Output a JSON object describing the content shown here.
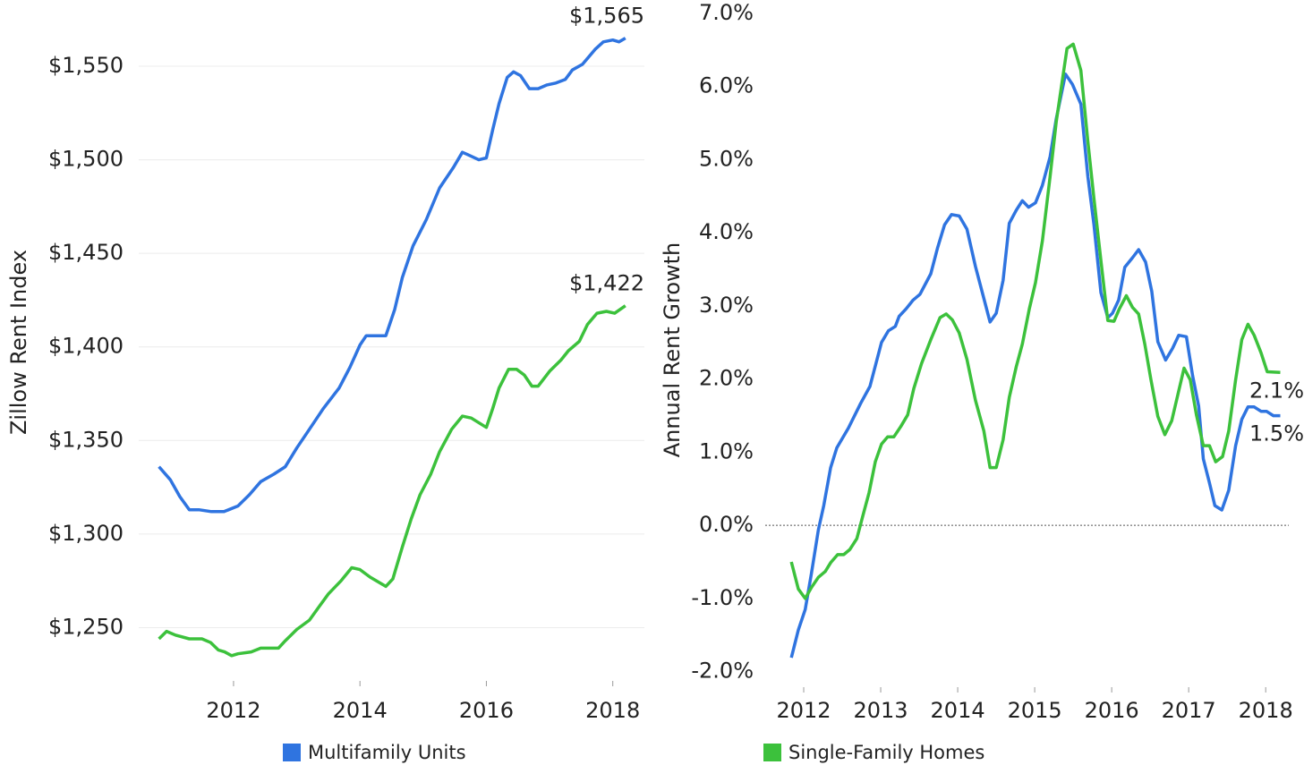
{
  "chart_data": [
    {
      "type": "line",
      "ylabel": "Zillow Rent Index",
      "grid": true,
      "legend": "bottom",
      "label_position": "above",
      "xlim": [
        2010.5,
        2018.5
      ],
      "xticks": [
        2012,
        2014,
        2016,
        2018
      ],
      "ylim": [
        1222,
        1583
      ],
      "yticks": [
        {
          "value": 1250,
          "label": "$1,250"
        },
        {
          "value": 1300,
          "label": "$1,300"
        },
        {
          "value": 1350,
          "label": "$1,350"
        },
        {
          "value": 1400,
          "label": "$1,400"
        },
        {
          "value": 1450,
          "label": "$1,450"
        },
        {
          "value": 1500,
          "label": "$1,500"
        },
        {
          "value": 1550,
          "label": "$1,550"
        }
      ],
      "series": [
        {
          "name": "Multifamily Units",
          "color": "#2f74e0",
          "x": [
            2010.82,
            2011.0,
            2011.15,
            2011.3,
            2011.45,
            2011.65,
            2011.85,
            2012.07,
            2012.25,
            2012.43,
            2012.64,
            2012.82,
            2013.0,
            2013.2,
            2013.42,
            2013.67,
            2013.84,
            2014.0,
            2014.1,
            2014.41,
            2014.55,
            2014.67,
            2014.84,
            2015.05,
            2015.26,
            2015.48,
            2015.62,
            2015.69,
            2015.88,
            2016.0,
            2016.1,
            2016.2,
            2016.33,
            2016.43,
            2016.54,
            2016.68,
            2016.82,
            2016.96,
            2017.1,
            2017.25,
            2017.36,
            2017.52,
            2017.72,
            2017.85,
            2018.0,
            2018.1,
            2018.2
          ],
          "values": [
            1336,
            1329,
            1320,
            1313,
            1313,
            1312,
            1312,
            1315,
            1321,
            1328,
            1332,
            1336,
            1346,
            1356,
            1367,
            1378,
            1389,
            1401,
            1406,
            1406,
            1420,
            1437,
            1454,
            1468,
            1485,
            1496,
            1504,
            1503,
            1500,
            1501,
            1516,
            1530,
            1544,
            1547,
            1545,
            1538,
            1538,
            1540,
            1541,
            1543,
            1548,
            1551,
            1559,
            1563,
            1564,
            1563,
            1565
          ],
          "value_labels": [
            null,
            null,
            null,
            null,
            null,
            null,
            null,
            null,
            null,
            null,
            null,
            null,
            null,
            null,
            null,
            null,
            null,
            null,
            null,
            null,
            null,
            null,
            null,
            null,
            null,
            null,
            null,
            null,
            null,
            null,
            null,
            null,
            null,
            null,
            null,
            null,
            null,
            null,
            null,
            null,
            null,
            null,
            null,
            null,
            null,
            null,
            "$1,565"
          ]
        },
        {
          "name": "Single-Family Homes",
          "color": "#3cc13c",
          "x": [
            2010.82,
            2010.94,
            2011.08,
            2011.3,
            2011.5,
            2011.64,
            2011.76,
            2011.86,
            2011.97,
            2012.07,
            2012.28,
            2012.43,
            2012.71,
            2012.82,
            2013.0,
            2013.2,
            2013.35,
            2013.5,
            2013.7,
            2013.87,
            2014.0,
            2014.16,
            2014.41,
            2014.52,
            2014.67,
            2014.81,
            2014.95,
            2015.12,
            2015.26,
            2015.45,
            2015.62,
            2015.76,
            2016.0,
            2016.1,
            2016.2,
            2016.35,
            2016.48,
            2016.6,
            2016.72,
            2016.82,
            2017.0,
            2017.18,
            2017.3,
            2017.47,
            2017.6,
            2017.75,
            2017.9,
            2018.03,
            2018.2
          ],
          "values": [
            1244,
            1248,
            1246,
            1244,
            1244,
            1242,
            1238,
            1237,
            1235,
            1236,
            1237,
            1239,
            1239,
            1243,
            1249,
            1254,
            1261,
            1268,
            1275,
            1282,
            1281,
            1277,
            1272,
            1276,
            1293,
            1308,
            1321,
            1332,
            1344,
            1356,
            1363,
            1362,
            1357,
            1367,
            1378,
            1388,
            1388,
            1385,
            1379,
            1379,
            1387,
            1393,
            1398,
            1403,
            1412,
            1418,
            1419,
            1418,
            1422
          ],
          "value_labels": [
            null,
            null,
            null,
            null,
            null,
            null,
            null,
            null,
            null,
            null,
            null,
            null,
            null,
            null,
            null,
            null,
            null,
            null,
            null,
            null,
            null,
            null,
            null,
            null,
            null,
            null,
            null,
            null,
            null,
            null,
            null,
            null,
            null,
            null,
            null,
            null,
            null,
            null,
            null,
            null,
            null,
            null,
            null,
            null,
            null,
            null,
            null,
            null,
            "$1,422"
          ]
        }
      ]
    },
    {
      "type": "line",
      "ylabel": "Annual Rent Growth",
      "grid": false,
      "zero_line": "dotted",
      "label_position": "below",
      "xlim": [
        2011.5,
        2018.3
      ],
      "xticks": [
        2012,
        2013,
        2014,
        2015,
        2016,
        2017,
        2018
      ],
      "ylim": [
        -2.2,
        7.0
      ],
      "yticks": [
        {
          "value": -2,
          "label": "-2.0%"
        },
        {
          "value": -1,
          "label": "-1.0%"
        },
        {
          "value": 0,
          "label": "0.0%"
        },
        {
          "value": 1,
          "label": "1.0%"
        },
        {
          "value": 2,
          "label": "2.0%"
        },
        {
          "value": 3,
          "label": "3.0%"
        },
        {
          "value": 4,
          "label": "4.0%"
        },
        {
          "value": 5,
          "label": "5.0%"
        },
        {
          "value": 6,
          "label": "6.0%"
        },
        {
          "value": 7,
          "label": "7.0%"
        }
      ],
      "series": [
        {
          "name": "Multifamily Units",
          "color": "#2f74e0",
          "x": [
            2011.84,
            2011.93,
            2012.02,
            2012.1,
            2012.19,
            2012.26,
            2012.35,
            2012.43,
            2012.58,
            2012.74,
            2012.86,
            2013.01,
            2013.1,
            2013.19,
            2013.24,
            2013.33,
            2013.42,
            2013.51,
            2013.65,
            2013.74,
            2013.83,
            2013.92,
            2014.02,
            2014.12,
            2014.23,
            2014.33,
            2014.42,
            2014.5,
            2014.59,
            2014.67,
            2014.76,
            2014.84,
            2014.92,
            2015.01,
            2015.1,
            2015.2,
            2015.28,
            2015.4,
            2015.49,
            2015.6,
            2015.69,
            2015.77,
            2015.86,
            2015.95,
            2016.01,
            2016.09,
            2016.17,
            2016.27,
            2016.35,
            2016.44,
            2016.52,
            2016.6,
            2016.7,
            2016.79,
            2016.87,
            2016.97,
            2017.05,
            2017.13,
            2017.19,
            2017.27,
            2017.34,
            2017.43,
            2017.52,
            2017.61,
            2017.69,
            2017.77,
            2017.85,
            2017.94,
            2018.01,
            2018.1,
            2018.19
          ],
          "values": [
            -1.81,
            -1.43,
            -1.15,
            -0.66,
            -0.06,
            0.27,
            0.79,
            1.06,
            1.33,
            1.67,
            1.9,
            2.5,
            2.66,
            2.72,
            2.86,
            2.96,
            3.08,
            3.16,
            3.44,
            3.8,
            4.11,
            4.25,
            4.23,
            4.05,
            3.54,
            3.14,
            2.78,
            2.9,
            3.35,
            4.13,
            4.31,
            4.44,
            4.35,
            4.41,
            4.65,
            5.04,
            5.56,
            6.17,
            6.03,
            5.76,
            4.77,
            4.11,
            3.18,
            2.84,
            2.9,
            3.08,
            3.53,
            3.66,
            3.77,
            3.6,
            3.2,
            2.51,
            2.26,
            2.42,
            2.6,
            2.58,
            2.05,
            1.63,
            0.91,
            0.58,
            0.27,
            0.21,
            0.48,
            1.09,
            1.45,
            1.62,
            1.62,
            1.56,
            1.56,
            1.5,
            1.5
          ],
          "value_labels": [
            null,
            null,
            null,
            null,
            null,
            null,
            null,
            null,
            null,
            null,
            null,
            null,
            null,
            null,
            null,
            null,
            null,
            null,
            null,
            null,
            null,
            null,
            null,
            null,
            null,
            null,
            null,
            null,
            null,
            null,
            null,
            null,
            null,
            null,
            null,
            null,
            null,
            null,
            null,
            null,
            null,
            null,
            null,
            null,
            null,
            null,
            null,
            null,
            null,
            null,
            null,
            null,
            null,
            null,
            null,
            null,
            null,
            null,
            null,
            null,
            null,
            null,
            null,
            null,
            null,
            null,
            null,
            null,
            null,
            null,
            "1.5%"
          ]
        },
        {
          "name": "Single-Family Homes",
          "color": "#3cc13c",
          "x": [
            2011.84,
            2011.93,
            2012.02,
            2012.1,
            2012.19,
            2012.28,
            2012.35,
            2012.44,
            2012.52,
            2012.6,
            2012.69,
            2012.77,
            2012.85,
            2012.93,
            2013.01,
            2013.09,
            2013.17,
            2013.26,
            2013.35,
            2013.43,
            2013.53,
            2013.65,
            2013.77,
            2013.85,
            2013.93,
            2014.02,
            2014.12,
            2014.23,
            2014.34,
            2014.42,
            2014.5,
            2014.59,
            2014.67,
            2014.76,
            2014.84,
            2014.93,
            2015.01,
            2015.1,
            2015.2,
            2015.28,
            2015.42,
            2015.5,
            2015.6,
            2015.69,
            2015.77,
            2015.86,
            2015.95,
            2016.03,
            2016.1,
            2016.19,
            2016.27,
            2016.35,
            2016.43,
            2016.51,
            2016.6,
            2016.69,
            2016.78,
            2016.86,
            2016.94,
            2017.02,
            2017.1,
            2017.19,
            2017.27,
            2017.35,
            2017.44,
            2017.52,
            2017.61,
            2017.69,
            2017.77,
            2017.85,
            2017.94,
            2018.02,
            2018.19
          ],
          "values": [
            -0.5,
            -0.87,
            -1.0,
            -0.85,
            -0.71,
            -0.63,
            -0.51,
            -0.4,
            -0.4,
            -0.33,
            -0.18,
            0.14,
            0.45,
            0.87,
            1.11,
            1.21,
            1.21,
            1.35,
            1.51,
            1.87,
            2.21,
            2.54,
            2.84,
            2.89,
            2.81,
            2.63,
            2.27,
            1.71,
            1.29,
            0.79,
            0.79,
            1.17,
            1.75,
            2.17,
            2.48,
            2.96,
            3.32,
            3.89,
            4.77,
            5.52,
            6.52,
            6.58,
            6.22,
            5.25,
            4.47,
            3.62,
            2.8,
            2.79,
            2.96,
            3.14,
            2.98,
            2.89,
            2.48,
            1.99,
            1.49,
            1.24,
            1.43,
            1.79,
            2.15,
            1.99,
            1.51,
            1.09,
            1.09,
            0.87,
            0.94,
            1.29,
            1.99,
            2.54,
            2.75,
            2.6,
            2.36,
            2.1,
            2.09
          ],
          "value_labels": [
            null,
            null,
            null,
            null,
            null,
            null,
            null,
            null,
            null,
            null,
            null,
            null,
            null,
            null,
            null,
            null,
            null,
            null,
            null,
            null,
            null,
            null,
            null,
            null,
            null,
            null,
            null,
            null,
            null,
            null,
            null,
            null,
            null,
            null,
            null,
            null,
            null,
            null,
            null,
            null,
            null,
            null,
            null,
            null,
            null,
            null,
            null,
            null,
            null,
            null,
            null,
            null,
            null,
            null,
            null,
            null,
            null,
            null,
            null,
            null,
            null,
            null,
            null,
            null,
            null,
            null,
            null,
            null,
            null,
            null,
            null,
            null,
            "2.1%"
          ]
        }
      ]
    }
  ]
}
